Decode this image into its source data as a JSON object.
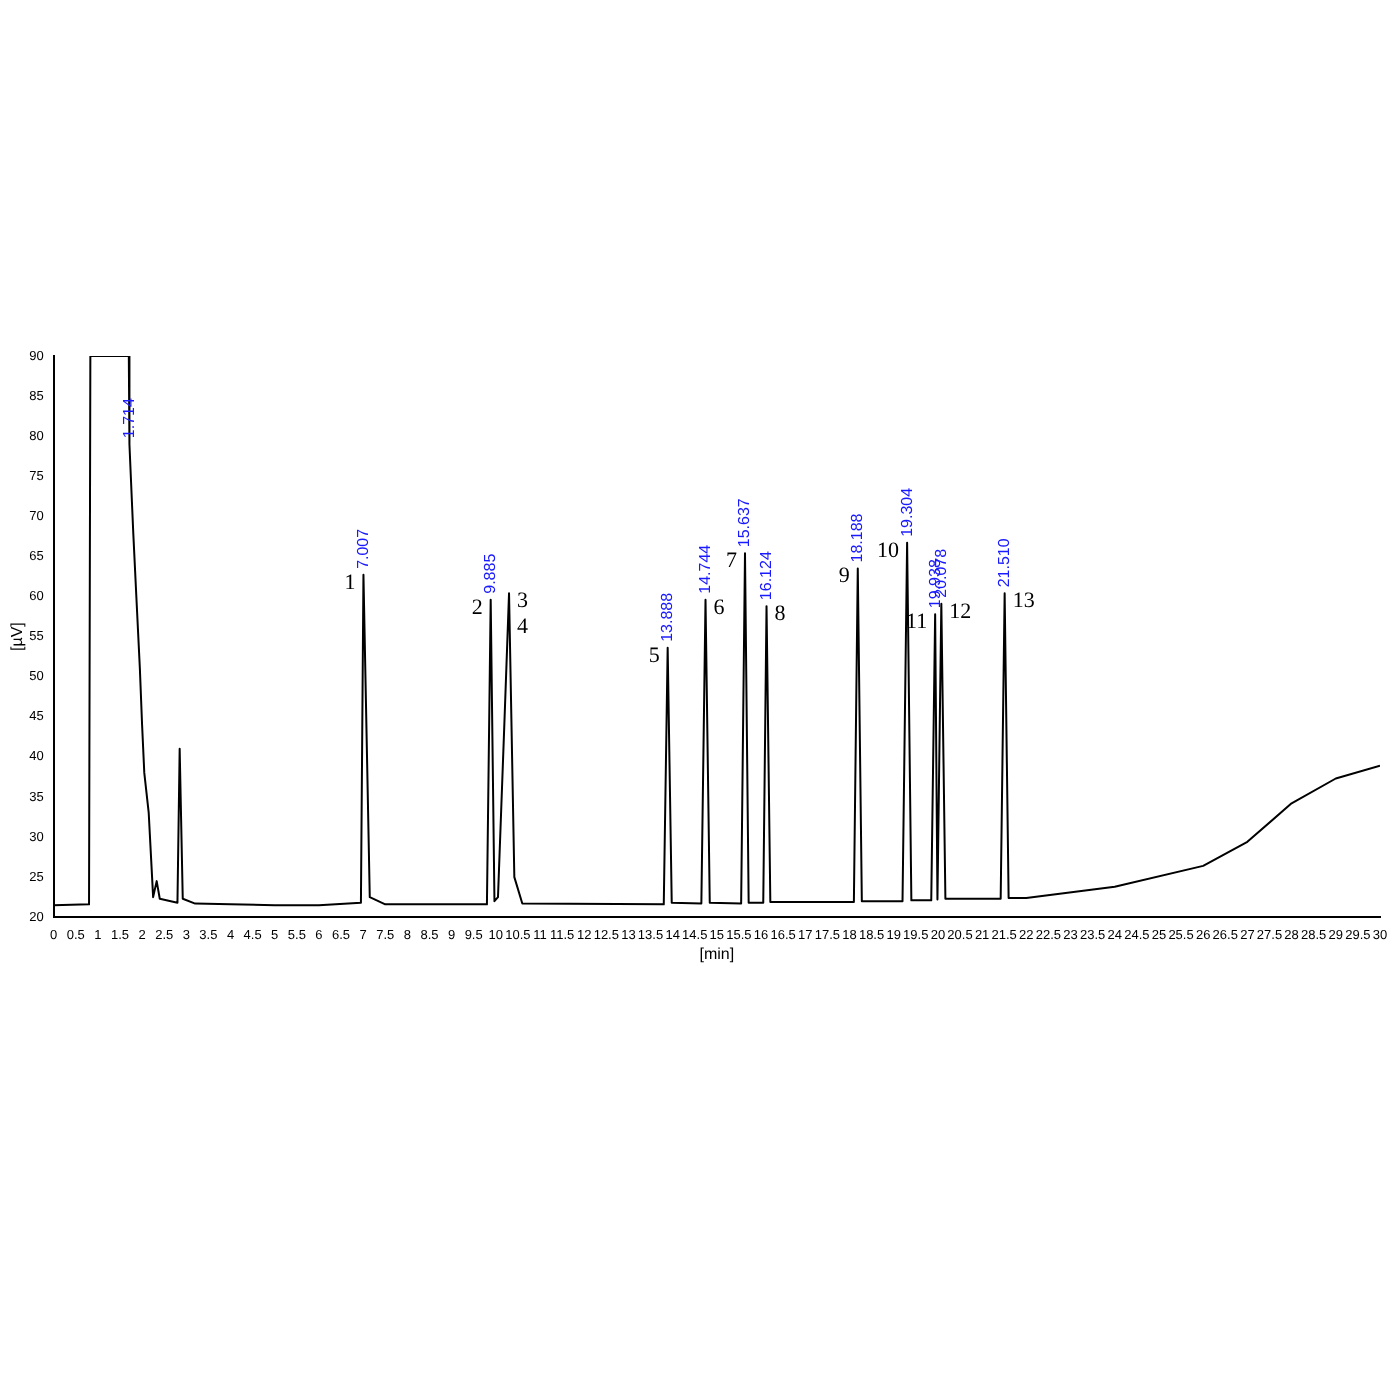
{
  "chart_data": {
    "type": "line",
    "xlabel": "[min]",
    "ylabel": "[µV]",
    "xlim": [
      0,
      30
    ],
    "xticks": [
      0,
      0.5,
      1,
      1.5,
      2,
      2.5,
      3,
      3.5,
      4,
      4.5,
      5,
      5.5,
      6,
      6.5,
      7,
      7.5,
      8,
      8.5,
      9,
      9.5,
      10,
      10.5,
      11,
      11.5,
      12,
      12.5,
      13,
      13.5,
      14,
      14.5,
      15,
      15.5,
      16,
      16.5,
      17,
      17.5,
      18,
      18.5,
      19,
      19.5,
      20,
      20.5,
      21,
      21.5,
      22,
      22.5,
      23,
      23.5,
      24,
      24.5,
      25,
      25.5,
      26,
      26.5,
      27,
      27.5,
      28,
      28.5,
      29,
      29.5,
      30
    ],
    "ylim": [
      20,
      90
    ],
    "yticks": [
      20,
      25,
      30,
      35,
      40,
      45,
      50,
      55,
      60,
      65,
      70,
      75,
      80,
      85,
      90
    ],
    "grid": false,
    "legend": false,
    "marker": "none",
    "line_style": "solid",
    "series": [
      {
        "color": "#000000",
        "x": [
          0,
          0.8,
          0.83,
          1.7,
          1.714,
          1.8,
          1.87,
          1.95,
          2.0,
          2.05,
          2.15,
          2.25,
          2.33,
          2.4,
          2.8,
          2.85,
          2.92,
          3.2,
          4,
          5,
          6,
          6.95,
          7.007,
          7.15,
          7.5,
          9.8,
          9.885,
          9.97,
          10.05,
          10.2,
          10.3,
          10.42,
          10.6,
          13.8,
          13.888,
          13.98,
          14.65,
          14.744,
          14.84,
          15.55,
          15.637,
          15.72,
          16.05,
          16.124,
          16.21,
          18.1,
          18.188,
          18.28,
          19.2,
          19.304,
          19.4,
          19.85,
          19.938,
          19.99,
          20.078,
          20.17,
          21.42,
          21.51,
          21.6,
          22,
          24,
          26,
          27,
          28,
          29,
          30
        ],
        "values": [
          21.5,
          21.6,
          90,
          90,
          79,
          68,
          60,
          51,
          44,
          38,
          33,
          22.5,
          24.5,
          22.3,
          21.8,
          41,
          22.3,
          21.7,
          21.6,
          21.5,
          21.5,
          21.8,
          62.7,
          22.5,
          21.6,
          21.6,
          59.6,
          22,
          22.5,
          45,
          60.4,
          25,
          21.7,
          21.6,
          53.6,
          21.8,
          21.7,
          59.6,
          21.8,
          21.7,
          65.4,
          21.8,
          21.8,
          58.8,
          21.9,
          21.9,
          63.5,
          22,
          22,
          66.7,
          22.1,
          22.1,
          57.8,
          22.2,
          59.1,
          22.3,
          22.3,
          60.4,
          22.4,
          22.4,
          23.8,
          26.4,
          29.4,
          34.2,
          37.3,
          38.9
        ]
      }
    ],
    "annotations": [
      {
        "text": "1.714",
        "x": 1.714,
        "y": 79
      },
      {
        "text": "7.007",
        "x": 7.007,
        "y": 62.7
      },
      {
        "text": "9.885",
        "x": 9.885,
        "y": 59.6
      },
      {
        "text": "13.888",
        "x": 13.888,
        "y": 53.6
      },
      {
        "text": "14.744",
        "x": 14.744,
        "y": 59.6
      },
      {
        "text": "15.637",
        "x": 15.637,
        "y": 65.4
      },
      {
        "text": "16.124",
        "x": 16.124,
        "y": 58.8
      },
      {
        "text": "18.188",
        "x": 18.188,
        "y": 63.5
      },
      {
        "text": "19.304",
        "x": 19.304,
        "y": 66.7
      },
      {
        "text": "19.938",
        "x": 19.938,
        "y": 57.8
      },
      {
        "text": "20.078",
        "x": 20.078,
        "y": 59.1
      },
      {
        "text": "21.510",
        "x": 21.51,
        "y": 60.4
      },
      {
        "text": "1",
        "x": 7.007,
        "y": 62.7
      },
      {
        "text": "2",
        "x": 9.885,
        "y": 59.6
      },
      {
        "text": "3",
        "x": 10.3,
        "y": 60.4
      },
      {
        "text": "4",
        "x": 10.3,
        "y": 60.4
      },
      {
        "text": "5",
        "x": 13.888,
        "y": 53.6
      },
      {
        "text": "6",
        "x": 14.744,
        "y": 59.6
      },
      {
        "text": "7",
        "x": 15.637,
        "y": 65.4
      },
      {
        "text": "8",
        "x": 16.124,
        "y": 58.8
      },
      {
        "text": "9",
        "x": 18.188,
        "y": 63.5
      },
      {
        "text": "10",
        "x": 19.304,
        "y": 66.7
      },
      {
        "text": "11",
        "x": 19.938,
        "y": 57.8
      },
      {
        "text": "12",
        "x": 20.078,
        "y": 59.1
      },
      {
        "text": "13",
        "x": 21.51,
        "y": 60.4
      }
    ]
  }
}
